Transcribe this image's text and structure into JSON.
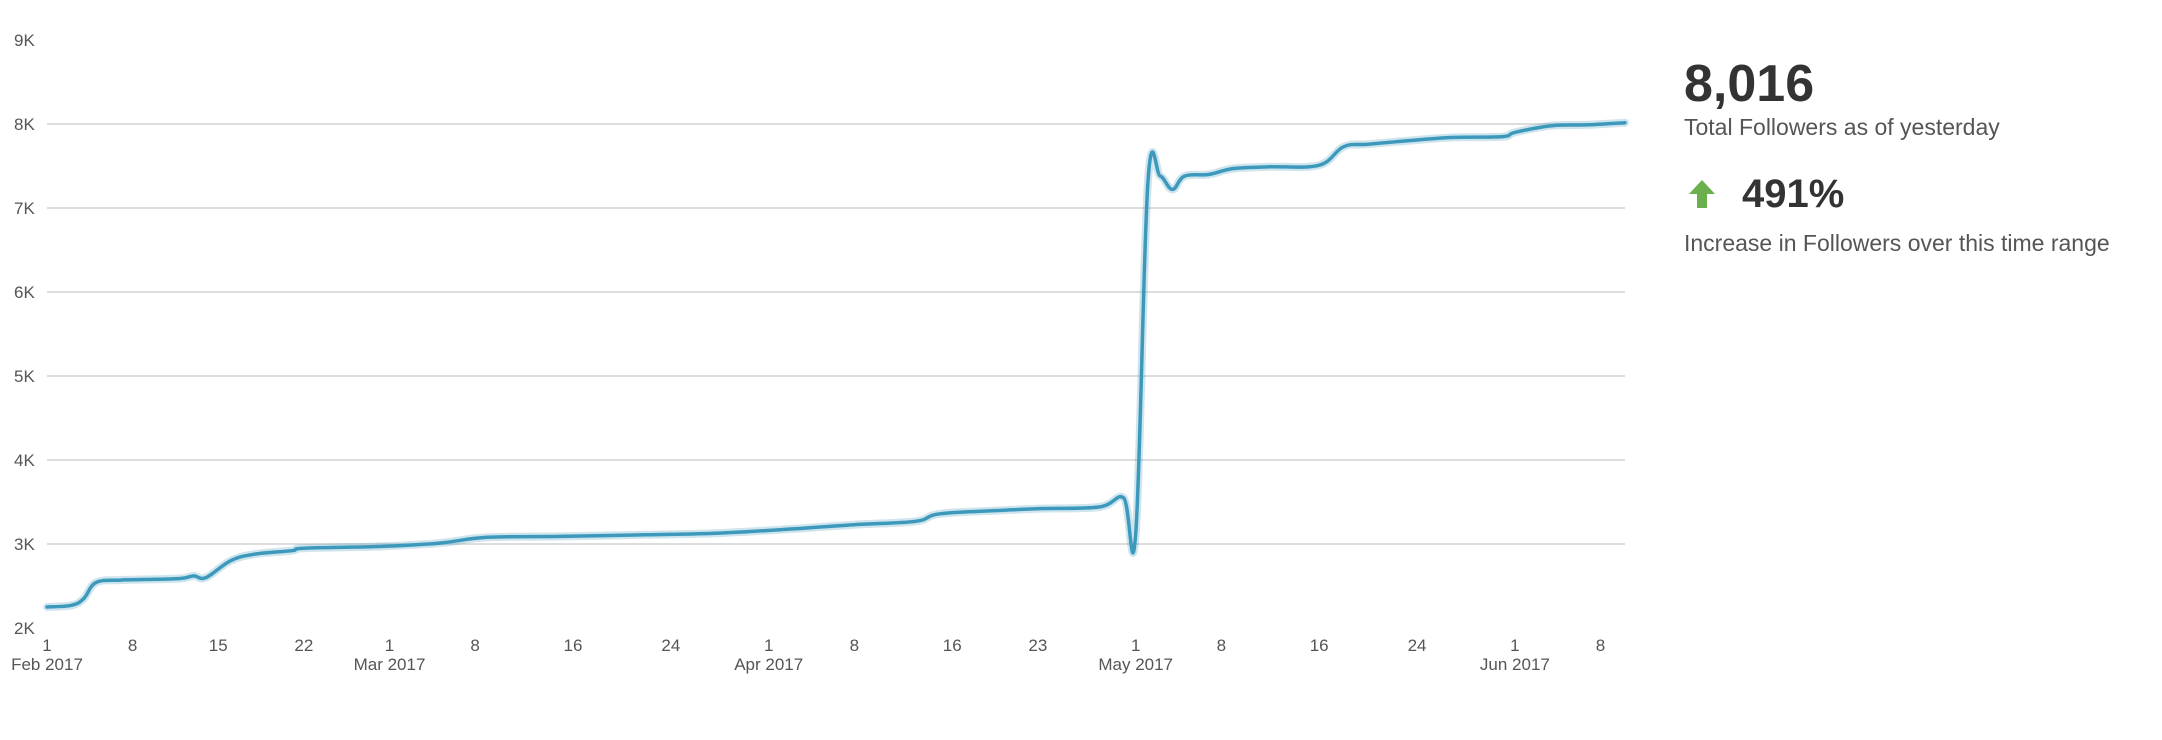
{
  "chart_data": {
    "type": "line",
    "title": "",
    "xlabel": "",
    "ylabel": "",
    "ylim": [
      2000,
      9000
    ],
    "xlim": [
      "2017-02-01",
      "2017-06-10"
    ],
    "grid": true,
    "colors": {
      "line": "#3d99bc",
      "grid": "#dddddd",
      "text": "#555555"
    },
    "y_ticks": [
      {
        "value": 2000,
        "label": "2K"
      },
      {
        "value": 3000,
        "label": "3K"
      },
      {
        "value": 4000,
        "label": "4K"
      },
      {
        "value": 5000,
        "label": "5K"
      },
      {
        "value": 6000,
        "label": "6K"
      },
      {
        "value": 7000,
        "label": "7K"
      },
      {
        "value": 8000,
        "label": "8K"
      },
      {
        "value": 9000,
        "label": "9K"
      }
    ],
    "x_ticks": [
      {
        "date": "2017-02-01",
        "label": "1",
        "sublabel": "Feb 2017"
      },
      {
        "date": "2017-02-08",
        "label": "8"
      },
      {
        "date": "2017-02-15",
        "label": "15"
      },
      {
        "date": "2017-02-22",
        "label": "22"
      },
      {
        "date": "2017-03-01",
        "label": "1",
        "sublabel": "Mar 2017"
      },
      {
        "date": "2017-03-08",
        "label": "8"
      },
      {
        "date": "2017-03-16",
        "label": "16"
      },
      {
        "date": "2017-03-24",
        "label": "24"
      },
      {
        "date": "2017-04-01",
        "label": "1",
        "sublabel": "Apr 2017"
      },
      {
        "date": "2017-04-08",
        "label": "8"
      },
      {
        "date": "2017-04-16",
        "label": "16"
      },
      {
        "date": "2017-04-23",
        "label": "23"
      },
      {
        "date": "2017-05-01",
        "label": "1",
        "sublabel": "May 2017"
      },
      {
        "date": "2017-05-08",
        "label": "8"
      },
      {
        "date": "2017-05-16",
        "label": "16"
      },
      {
        "date": "2017-05-24",
        "label": "24"
      },
      {
        "date": "2017-06-01",
        "label": "1",
        "sublabel": "Jun 2017"
      },
      {
        "date": "2017-06-08",
        "label": "8"
      }
    ],
    "series": [
      {
        "points": [
          [
            "2017-02-01",
            2250
          ],
          [
            "2017-02-03",
            2270
          ],
          [
            "2017-02-04",
            2350
          ],
          [
            "2017-02-05",
            2540
          ],
          [
            "2017-02-07",
            2570
          ],
          [
            "2017-02-10",
            2580
          ],
          [
            "2017-02-12",
            2590
          ],
          [
            "2017-02-13",
            2620
          ],
          [
            "2017-02-14",
            2600
          ],
          [
            "2017-02-16",
            2800
          ],
          [
            "2017-02-18",
            2880
          ],
          [
            "2017-02-21",
            2920
          ],
          [
            "2017-02-22",
            2950
          ],
          [
            "2017-02-28",
            2970
          ],
          [
            "2017-03-05",
            3010
          ],
          [
            "2017-03-09",
            3080
          ],
          [
            "2017-03-15",
            3090
          ],
          [
            "2017-03-22",
            3110
          ],
          [
            "2017-03-28",
            3130
          ],
          [
            "2017-04-03",
            3180
          ],
          [
            "2017-04-08",
            3230
          ],
          [
            "2017-04-13",
            3270
          ],
          [
            "2017-04-15",
            3360
          ],
          [
            "2017-04-20",
            3400
          ],
          [
            "2017-04-23",
            3420
          ],
          [
            "2017-04-28",
            3440
          ],
          [
            "2017-04-30",
            3550
          ],
          [
            "2017-05-01",
            3120
          ],
          [
            "2017-05-02",
            7300
          ],
          [
            "2017-05-03",
            7380
          ],
          [
            "2017-05-04",
            7220
          ],
          [
            "2017-05-05",
            7380
          ],
          [
            "2017-05-07",
            7400
          ],
          [
            "2017-05-09",
            7470
          ],
          [
            "2017-05-12",
            7490
          ],
          [
            "2017-05-16",
            7510
          ],
          [
            "2017-05-18",
            7730
          ],
          [
            "2017-05-20",
            7760
          ],
          [
            "2017-05-24",
            7810
          ],
          [
            "2017-05-27",
            7840
          ],
          [
            "2017-05-31",
            7850
          ],
          [
            "2017-06-01",
            7900
          ],
          [
            "2017-06-04",
            7980
          ],
          [
            "2017-06-07",
            7990
          ],
          [
            "2017-06-10",
            8016
          ]
        ]
      }
    ]
  },
  "summary": {
    "total_value": "8,016",
    "total_label": "Total Followers as of yesterday",
    "change_value": "491%",
    "change_label": "Increase in Followers over this time range",
    "change_icon": "up-arrow-icon",
    "change_color": "#6ab04c"
  }
}
